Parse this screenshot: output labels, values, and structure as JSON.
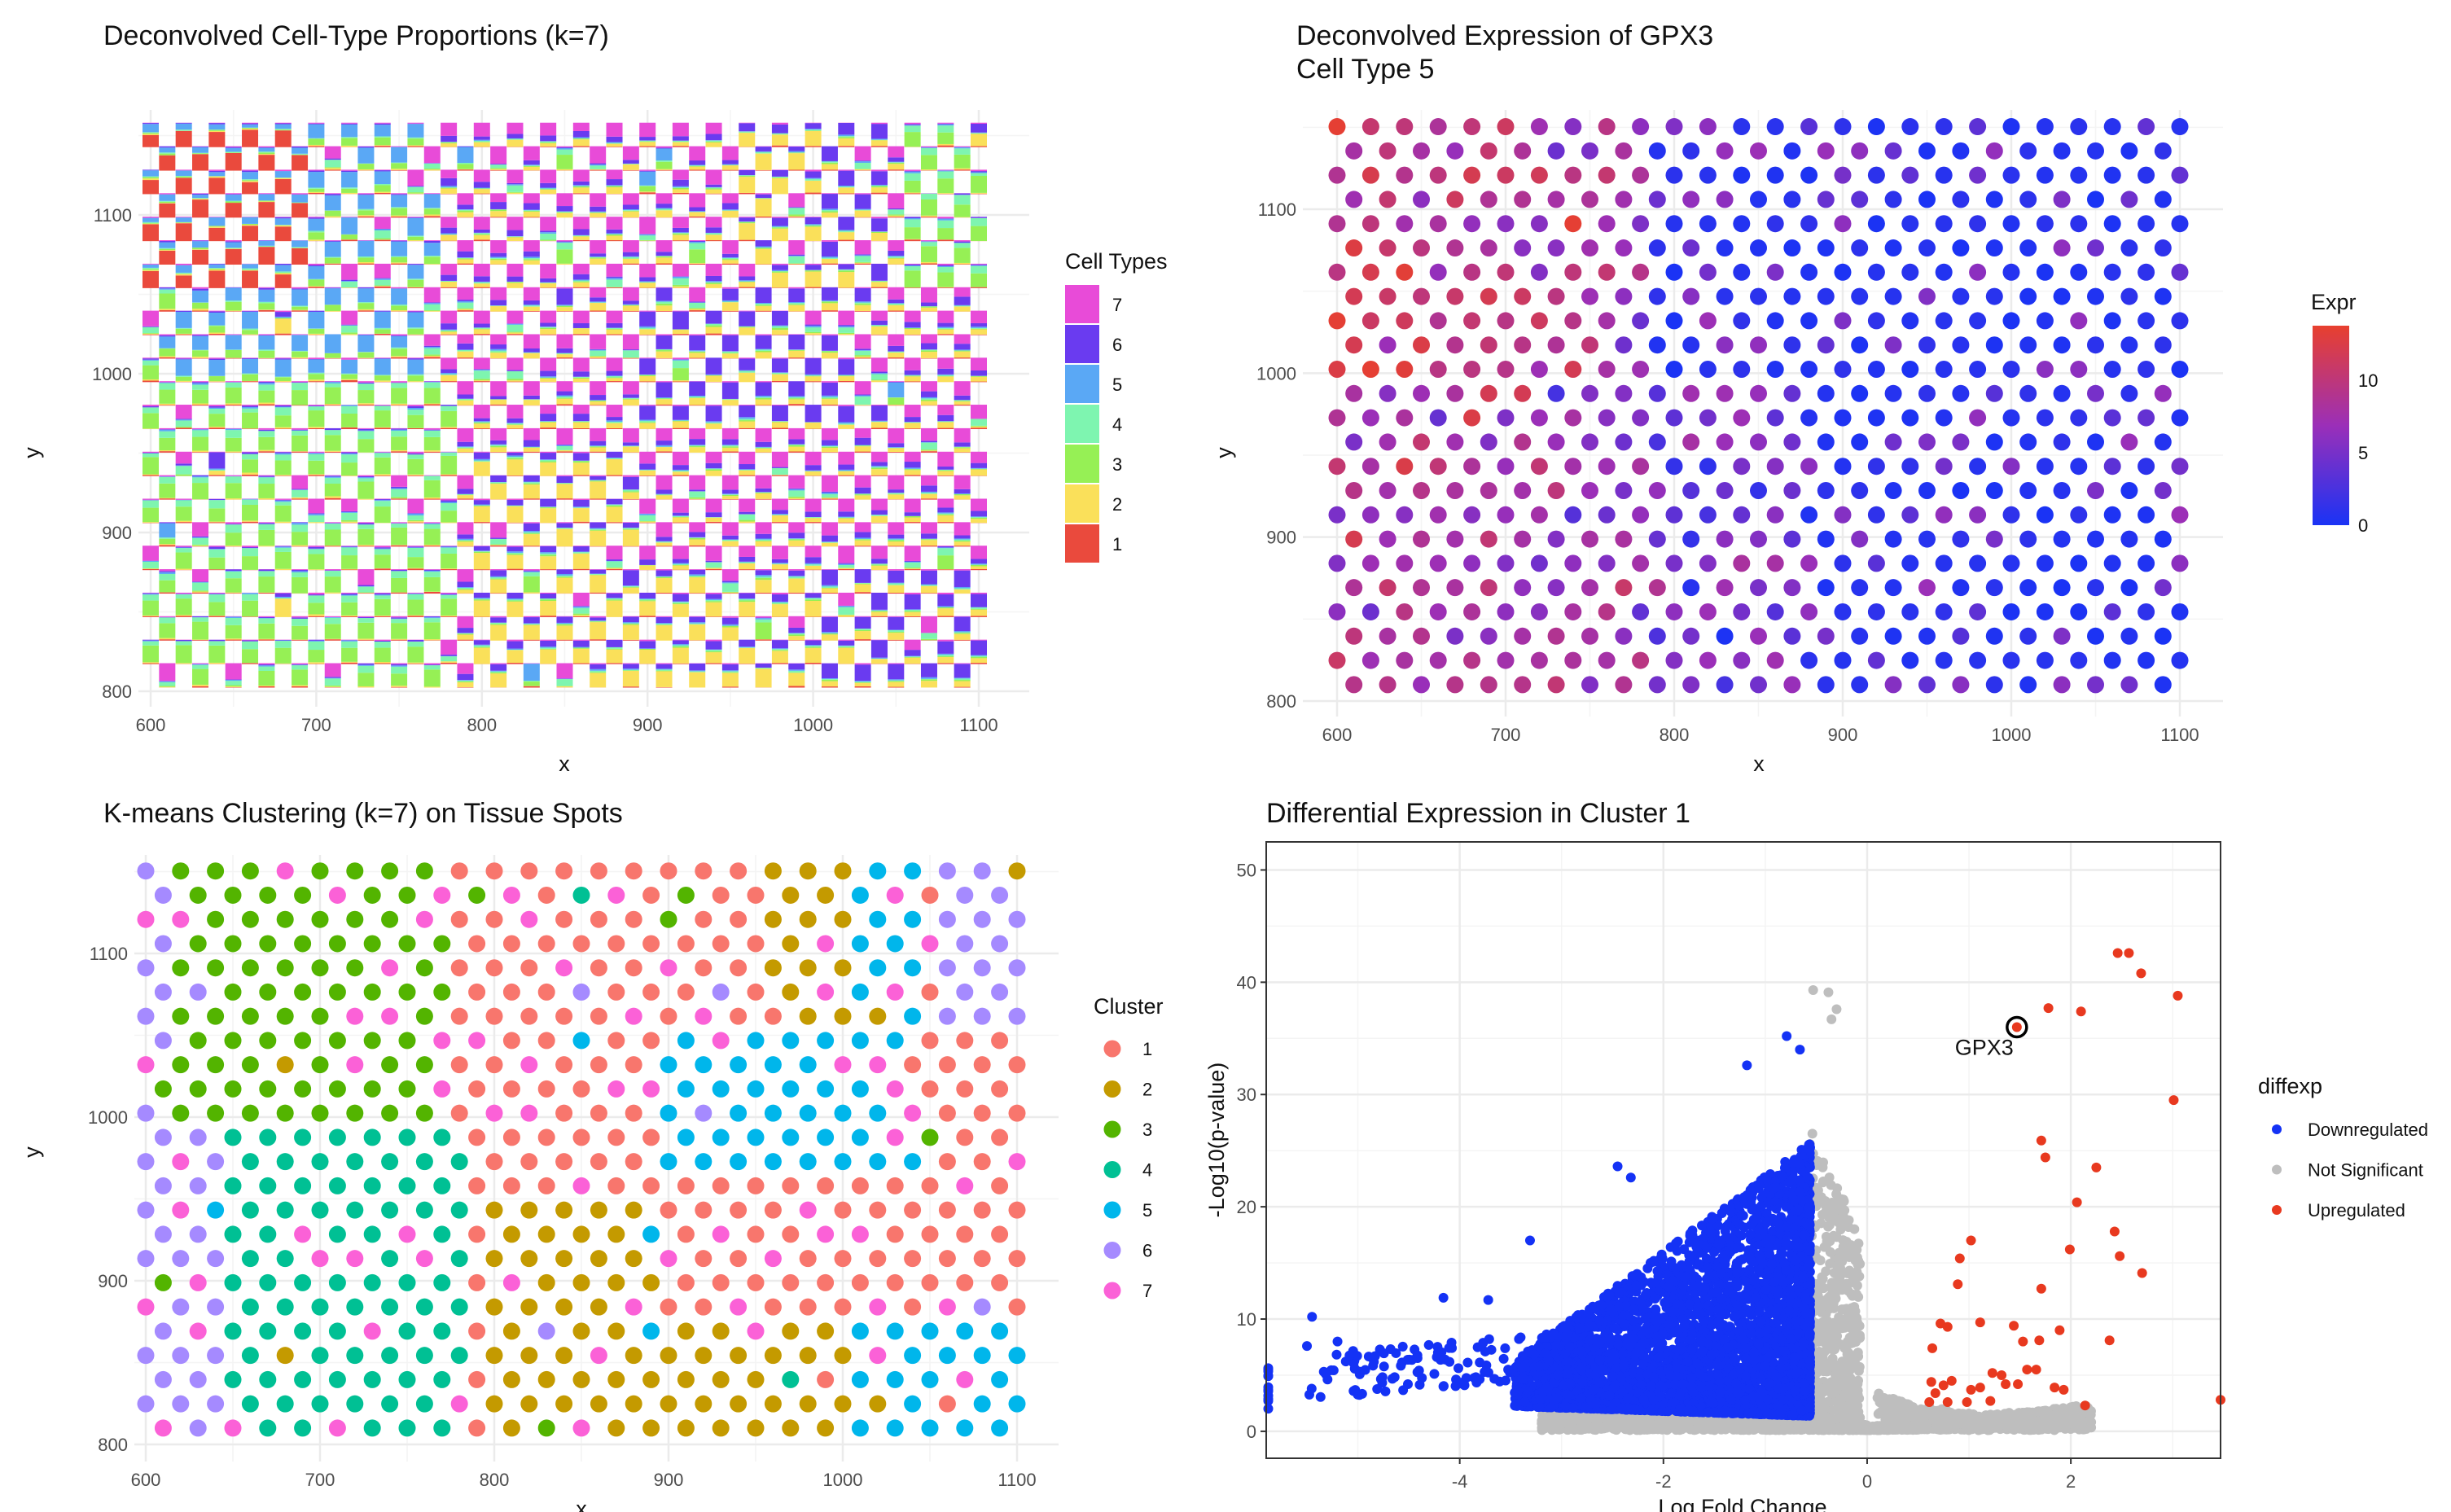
{
  "chart_data": [
    {
      "type": "scatter",
      "title": "Deconvolved Cell-Type Proportions (k=7)",
      "xlabel": "x",
      "ylabel": "y",
      "xlim": [
        590,
        1110
      ],
      "ylim": [
        795,
        1160
      ],
      "xticks": [
        600,
        700,
        800,
        900,
        1000,
        1100
      ],
      "yticks": [
        800,
        900,
        1000,
        1100
      ],
      "mark": "stacked proportion bars per tissue spot",
      "legend": {
        "title": "Cell Types",
        "position": "right",
        "entries": [
          {
            "label": "7",
            "color": "#E84BD8"
          },
          {
            "label": "6",
            "color": "#6A3BF0"
          },
          {
            "label": "5",
            "color": "#5AA8F5"
          },
          {
            "label": "4",
            "color": "#7EF5B0"
          },
          {
            "label": "3",
            "color": "#96F055"
          },
          {
            "label": "2",
            "color": "#FAE05A"
          },
          {
            "label": "1",
            "color": "#EA4A3D"
          }
        ]
      },
      "grid": true
    },
    {
      "type": "scatter",
      "title": "Deconvolved Expression of GPX3",
      "subtitle": "Cell Type 5",
      "xlabel": "x",
      "ylabel": "y",
      "xlim": [
        590,
        1110
      ],
      "ylim": [
        795,
        1160
      ],
      "xticks": [
        600,
        700,
        800,
        900,
        1000,
        1100
      ],
      "yticks": [
        800,
        900,
        1000,
        1100
      ],
      "legend": {
        "title": "Expr",
        "position": "right",
        "type": "gradient",
        "low_color": "#1A33F5",
        "high_color": "#E8402E",
        "range": [
          0,
          13.8
        ],
        "ticks": [
          "0",
          "5",
          "10"
        ]
      },
      "grid": true
    },
    {
      "type": "scatter",
      "title": "K-means Clustering (k=7) on Tissue Spots",
      "xlabel": "x",
      "ylabel": "y",
      "xlim": [
        590,
        1110
      ],
      "ylim": [
        795,
        1160
      ],
      "xticks": [
        600,
        700,
        800,
        900,
        1000,
        1100
      ],
      "yticks": [
        800,
        900,
        1000,
        1100
      ],
      "legend": {
        "title": "Cluster",
        "position": "right",
        "entries": [
          {
            "label": "1",
            "color": "#F8766D"
          },
          {
            "label": "2",
            "color": "#C49A00"
          },
          {
            "label": "3",
            "color": "#53B400"
          },
          {
            "label": "4",
            "color": "#00C094"
          },
          {
            "label": "5",
            "color": "#00B6EB"
          },
          {
            "label": "6",
            "color": "#A58AFF"
          },
          {
            "label": "7",
            "color": "#FB61D7"
          }
        ]
      },
      "grid": true
    },
    {
      "type": "scatter",
      "title": "Differential Expression in Cluster 1",
      "xlabel": "Log Fold Change",
      "ylabel": "-Log10(p-value)",
      "xlim": [
        -5.9,
        3.47
      ],
      "ylim": [
        -2.4,
        52.5
      ],
      "xticks": [
        -4,
        -2,
        0,
        2
      ],
      "yticks": [
        0,
        10,
        20,
        30,
        40,
        50
      ],
      "legend": {
        "title": "diffexp",
        "position": "right",
        "entries": [
          {
            "label": "Downregulated",
            "color": "#1432F5"
          },
          {
            "label": "Not Significant",
            "color": "#BEBEBE"
          },
          {
            "label": "Upregulated",
            "color": "#E8391F"
          }
        ]
      },
      "annotation": {
        "label": "GPX3",
        "x": 1.47,
        "y": 36.0
      },
      "series": [
        {
          "name": "Upregulated",
          "points": [
            [
              2.46,
              42.6
            ],
            [
              2.57,
              42.6
            ],
            [
              2.69,
              40.8
            ],
            [
              3.05,
              38.8
            ],
            [
              1.78,
              37.7
            ],
            [
              2.1,
              37.4
            ],
            [
              1.47,
              36.0
            ],
            [
              3.01,
              29.5
            ],
            [
              1.71,
              25.9
            ],
            [
              1.75,
              24.4
            ],
            [
              2.25,
              23.5
            ],
            [
              2.06,
              20.4
            ],
            [
              1.02,
              17.0
            ],
            [
              2.43,
              17.8
            ],
            [
              1.99,
              16.2
            ],
            [
              2.48,
              15.6
            ],
            [
              0.91,
              15.4
            ],
            [
              2.7,
              14.1
            ],
            [
              0.89,
              13.1
            ],
            [
              1.71,
              12.7
            ],
            [
              0.72,
              9.6
            ],
            [
              0.79,
              9.3
            ],
            [
              1.11,
              9.7
            ],
            [
              1.44,
              9.4
            ],
            [
              1.89,
              9.0
            ],
            [
              1.69,
              8.1
            ],
            [
              1.53,
              8.0
            ],
            [
              2.38,
              8.1
            ],
            [
              0.64,
              7.4
            ],
            [
              1.23,
              5.2
            ],
            [
              1.32,
              5.0
            ],
            [
              1.57,
              5.5
            ],
            [
              1.66,
              5.5
            ],
            [
              1.48,
              4.2
            ],
            [
              1.36,
              4.2
            ],
            [
              0.63,
              4.4
            ],
            [
              0.83,
              4.5
            ],
            [
              0.75,
              4.1
            ],
            [
              1.02,
              3.7
            ],
            [
              1.11,
              3.9
            ],
            [
              0.67,
              3.4
            ],
            [
              0.79,
              2.6
            ],
            [
              0.98,
              2.6
            ],
            [
              1.21,
              2.7
            ],
            [
              1.84,
              3.9
            ],
            [
              1.93,
              3.7
            ],
            [
              2.14,
              2.3
            ],
            [
              3.47,
              2.8
            ],
            [
              0.61,
              2.6
            ]
          ]
        },
        {
          "name": "Downregulated",
          "x_range": [
            -5.9,
            -0.55
          ],
          "max_y": 35.2,
          "notable_points": [
            [
              -5.45,
              10.2
            ],
            [
              -5.5,
              7.6
            ],
            [
              -5.2,
              8.0
            ],
            [
              -4.16,
              11.9
            ],
            [
              -3.72,
              11.7
            ],
            [
              -3.31,
              17.0
            ],
            [
              -2.45,
              23.6
            ],
            [
              -2.32,
              22.6
            ],
            [
              -1.18,
              32.6
            ],
            [
              -0.79,
              35.2
            ],
            [
              -0.66,
              34.0
            ]
          ]
        },
        {
          "name": "Not Significant",
          "x_range": [
            -3.2,
            2.3
          ],
          "max_y": 39.3,
          "notable_points": [
            [
              -0.53,
              39.3
            ],
            [
              -0.38,
              39.1
            ],
            [
              -0.3,
              37.6
            ],
            [
              -0.35,
              36.7
            ]
          ]
        }
      ]
    }
  ]
}
